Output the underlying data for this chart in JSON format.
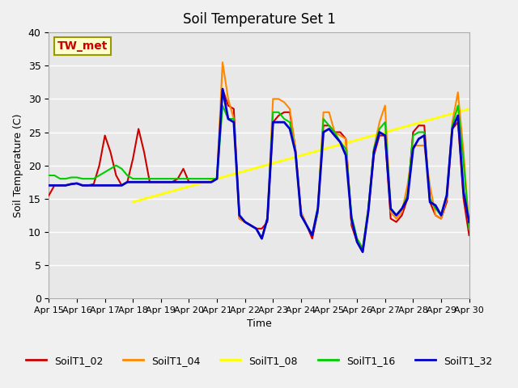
{
  "title": "Soil Temperature Set 1",
  "xlabel": "Time",
  "ylabel": "Soil Temperature (C)",
  "ylim": [
    0,
    40
  ],
  "annotation": "TW_met",
  "annotation_color": "#cc0000",
  "annotation_box_color": "#ffffcc",
  "annotation_box_edge": "#999900",
  "background_color": "#e8e8e8",
  "grid_color": "#ffffff",
  "legend_entries": [
    "SoilT1_02",
    "SoilT1_04",
    "SoilT1_08",
    "SoilT1_16",
    "SoilT1_32"
  ],
  "legend_colors": [
    "#cc0000",
    "#ff8800",
    "#ffff00",
    "#00cc00",
    "#0000cc"
  ],
  "series": {
    "SoilT1_02": {
      "x": [
        0,
        0.2,
        0.4,
        0.6,
        0.8,
        1.0,
        1.2,
        1.4,
        1.6,
        1.8,
        2.0,
        2.2,
        2.4,
        2.6,
        2.8,
        3.0,
        3.2,
        3.4,
        3.6,
        3.8,
        4.0,
        4.2,
        4.4,
        4.6,
        4.8,
        5.0,
        5.2,
        5.4,
        5.6,
        5.8,
        6.0,
        6.2,
        6.4,
        6.6,
        6.8,
        7.0,
        7.2,
        7.4,
        7.6,
        7.8,
        8.0,
        8.2,
        8.4,
        8.6,
        8.8,
        9.0,
        9.2,
        9.4,
        9.6,
        9.8,
        10.0,
        10.2,
        10.4,
        10.6,
        10.8,
        11.0,
        11.2,
        11.4,
        11.6,
        11.8,
        12.0,
        12.2,
        12.4,
        12.6,
        12.8,
        13.0,
        13.2,
        13.4,
        13.6,
        13.8,
        14.0,
        14.2,
        14.4,
        14.6,
        14.8,
        15.0
      ],
      "y": [
        15.5,
        17.0,
        17.0,
        17.0,
        17.2,
        17.3,
        17.0,
        17.0,
        17.2,
        20.0,
        24.5,
        22.0,
        18.5,
        17.0,
        17.5,
        21.0,
        25.5,
        22.0,
        17.5,
        17.5,
        17.5,
        17.5,
        17.5,
        18.0,
        19.5,
        17.5,
        17.5,
        17.5,
        17.5,
        17.5,
        18.0,
        31.5,
        29.0,
        28.5,
        12.0,
        11.5,
        11.0,
        10.5,
        10.5,
        11.5,
        26.5,
        27.5,
        28.0,
        28.0,
        22.5,
        13.0,
        11.0,
        9.0,
        13.0,
        26.0,
        26.0,
        25.0,
        25.0,
        24.0,
        11.0,
        8.5,
        7.0,
        13.0,
        21.5,
        24.5,
        24.5,
        12.0,
        11.5,
        12.5,
        15.0,
        25.0,
        26.0,
        26.0,
        14.5,
        12.5,
        12.0,
        14.5,
        25.5,
        26.5,
        15.0,
        9.5
      ]
    },
    "SoilT1_04": {
      "x": [
        0,
        0.2,
        0.4,
        0.6,
        0.8,
        1.0,
        1.2,
        1.4,
        1.6,
        1.8,
        2.0,
        2.2,
        2.4,
        2.6,
        2.8,
        3.0,
        3.2,
        3.4,
        3.6,
        3.8,
        4.0,
        4.2,
        4.4,
        4.6,
        4.8,
        5.0,
        5.2,
        5.4,
        5.6,
        5.8,
        6.0,
        6.2,
        6.4,
        6.6,
        6.8,
        7.0,
        7.2,
        7.4,
        7.6,
        7.8,
        8.0,
        8.2,
        8.4,
        8.6,
        8.8,
        9.0,
        9.2,
        9.4,
        9.6,
        9.8,
        10.0,
        10.2,
        10.4,
        10.6,
        10.8,
        11.0,
        11.2,
        11.4,
        11.6,
        11.8,
        12.0,
        12.2,
        12.4,
        12.6,
        12.8,
        13.0,
        13.2,
        13.4,
        13.6,
        13.8,
        14.0,
        14.2,
        14.4,
        14.6,
        14.8,
        15.0
      ],
      "y": [
        17.0,
        17.0,
        17.0,
        17.0,
        17.2,
        17.3,
        17.0,
        17.0,
        17.0,
        17.0,
        17.0,
        17.0,
        17.0,
        17.0,
        17.5,
        17.5,
        17.5,
        17.5,
        17.5,
        17.5,
        17.5,
        17.5,
        17.5,
        17.5,
        17.5,
        17.5,
        17.5,
        17.5,
        17.5,
        17.5,
        18.0,
        35.5,
        30.0,
        27.0,
        12.0,
        11.5,
        11.0,
        10.5,
        9.0,
        12.0,
        30.0,
        30.0,
        29.5,
        28.5,
        22.5,
        13.0,
        11.0,
        9.5,
        13.5,
        28.0,
        28.0,
        25.0,
        24.5,
        24.0,
        11.5,
        9.0,
        7.5,
        13.5,
        22.5,
        26.5,
        29.0,
        13.0,
        12.0,
        13.0,
        17.0,
        23.0,
        23.0,
        23.0,
        17.0,
        12.5,
        12.0,
        15.0,
        26.5,
        31.0,
        22.0,
        10.5
      ]
    },
    "SoilT1_08": {
      "x": [
        3.0,
        15.0
      ],
      "y": [
        14.5,
        28.5
      ]
    },
    "SoilT1_16": {
      "x": [
        0,
        0.2,
        0.4,
        0.6,
        0.8,
        1.0,
        1.2,
        1.4,
        1.6,
        1.8,
        2.0,
        2.2,
        2.4,
        2.6,
        2.8,
        3.0,
        3.2,
        3.4,
        3.6,
        3.8,
        4.0,
        4.2,
        4.4,
        4.6,
        4.8,
        5.0,
        5.2,
        5.4,
        5.6,
        5.8,
        6.0,
        6.2,
        6.4,
        6.6,
        6.8,
        7.0,
        7.2,
        7.4,
        7.6,
        7.8,
        8.0,
        8.2,
        8.4,
        8.6,
        8.8,
        9.0,
        9.2,
        9.4,
        9.6,
        9.8,
        10.0,
        10.2,
        10.4,
        10.6,
        10.8,
        11.0,
        11.2,
        11.4,
        11.6,
        11.8,
        12.0,
        12.2,
        12.4,
        12.6,
        12.8,
        13.0,
        13.2,
        13.4,
        13.6,
        13.8,
        14.0,
        14.2,
        14.4,
        14.6,
        14.8,
        15.0
      ],
      "y": [
        18.5,
        18.5,
        18.0,
        18.0,
        18.2,
        18.2,
        18.0,
        18.0,
        18.0,
        18.5,
        19.0,
        19.5,
        20.0,
        19.5,
        18.5,
        18.0,
        18.0,
        18.0,
        18.0,
        18.0,
        18.0,
        18.0,
        18.0,
        18.0,
        18.0,
        18.0,
        18.0,
        18.0,
        18.0,
        18.0,
        18.0,
        29.0,
        27.0,
        27.0,
        12.5,
        11.5,
        11.0,
        10.5,
        9.0,
        12.0,
        28.0,
        28.0,
        27.0,
        26.5,
        22.0,
        12.5,
        11.0,
        9.5,
        13.0,
        27.0,
        26.0,
        25.0,
        23.5,
        22.5,
        12.5,
        9.0,
        7.5,
        13.5,
        22.5,
        25.5,
        26.5,
        13.5,
        12.5,
        13.5,
        15.5,
        24.5,
        25.0,
        25.0,
        15.0,
        13.5,
        12.5,
        15.5,
        26.0,
        29.0,
        20.5,
        10.5
      ]
    },
    "SoilT1_32": {
      "x": [
        0,
        0.2,
        0.4,
        0.6,
        0.8,
        1.0,
        1.2,
        1.4,
        1.6,
        1.8,
        2.0,
        2.2,
        2.4,
        2.6,
        2.8,
        3.0,
        3.2,
        3.4,
        3.6,
        3.8,
        4.0,
        4.2,
        4.4,
        4.6,
        4.8,
        5.0,
        5.2,
        5.4,
        5.6,
        5.8,
        6.0,
        6.2,
        6.4,
        6.6,
        6.8,
        7.0,
        7.2,
        7.4,
        7.6,
        7.8,
        8.0,
        8.2,
        8.4,
        8.6,
        8.8,
        9.0,
        9.2,
        9.4,
        9.6,
        9.8,
        10.0,
        10.2,
        10.4,
        10.6,
        10.8,
        11.0,
        11.2,
        11.4,
        11.6,
        11.8,
        12.0,
        12.2,
        12.4,
        12.6,
        12.8,
        13.0,
        13.2,
        13.4,
        13.6,
        13.8,
        14.0,
        14.2,
        14.4,
        14.6,
        14.8,
        15.0
      ],
      "y": [
        17.0,
        17.0,
        17.0,
        17.0,
        17.2,
        17.3,
        17.0,
        17.0,
        17.0,
        17.0,
        17.0,
        17.0,
        17.0,
        17.0,
        17.5,
        17.5,
        17.5,
        17.5,
        17.5,
        17.5,
        17.5,
        17.5,
        17.5,
        17.5,
        17.5,
        17.5,
        17.5,
        17.5,
        17.5,
        17.5,
        18.0,
        31.5,
        27.0,
        26.5,
        12.5,
        11.5,
        11.0,
        10.5,
        9.0,
        12.0,
        26.5,
        26.5,
        26.5,
        25.5,
        22.0,
        12.5,
        11.0,
        9.5,
        13.5,
        25.0,
        25.5,
        24.5,
        23.5,
        21.5,
        12.0,
        8.5,
        7.0,
        13.0,
        22.0,
        25.0,
        24.5,
        13.5,
        12.5,
        13.5,
        15.0,
        22.5,
        24.0,
        24.5,
        14.5,
        14.0,
        12.5,
        15.5,
        25.5,
        27.5,
        16.0,
        11.5
      ]
    }
  },
  "xtick_labels": [
    "Apr 15",
    "Apr 16",
    "Apr 17",
    "Apr 18",
    "Apr 19",
    "Apr 20",
    "Apr 21",
    "Apr 22",
    "Apr 23",
    "Apr 24",
    "Apr 25",
    "Apr 26",
    "Apr 27",
    "Apr 28",
    "Apr 29",
    "Apr 30"
  ],
  "xtick_positions": [
    0,
    1,
    2,
    3,
    4,
    5,
    6,
    7,
    8,
    9,
    10,
    11,
    12,
    13,
    14,
    15
  ],
  "ytick_labels": [
    "0",
    "5",
    "10",
    "15",
    "20",
    "25",
    "30",
    "35",
    "40"
  ],
  "ytick_positions": [
    0,
    5,
    10,
    15,
    20,
    25,
    30,
    35,
    40
  ]
}
